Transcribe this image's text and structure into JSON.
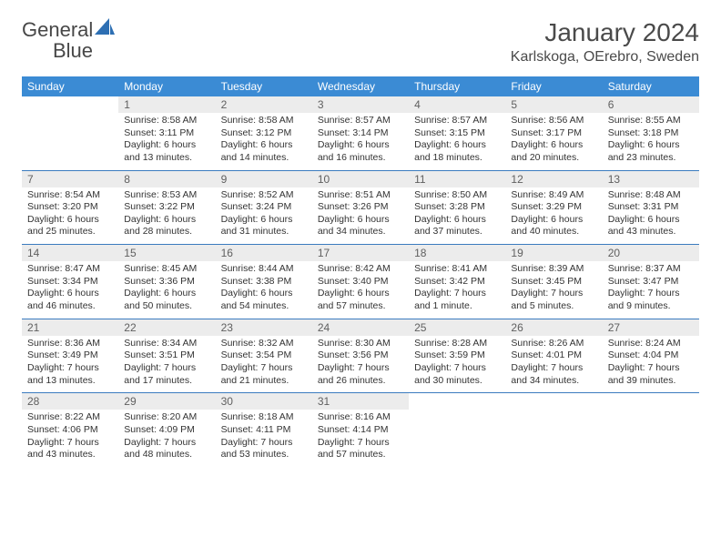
{
  "logo": {
    "word1": "General",
    "word2": "Blue",
    "shape_color": "#2d6fb3"
  },
  "title": "January 2024",
  "location": "Karlskoga, OErebro, Sweden",
  "header_bg": "#3b8bd4",
  "daynum_bg": "#ececec",
  "rule_color": "#3b7bbf",
  "weekdays": [
    "Sunday",
    "Monday",
    "Tuesday",
    "Wednesday",
    "Thursday",
    "Friday",
    "Saturday"
  ],
  "weeks": [
    [
      {
        "n": "",
        "sr": "",
        "ss": "",
        "dl1": "",
        "dl2": ""
      },
      {
        "n": "1",
        "sr": "Sunrise: 8:58 AM",
        "ss": "Sunset: 3:11 PM",
        "dl1": "Daylight: 6 hours",
        "dl2": "and 13 minutes."
      },
      {
        "n": "2",
        "sr": "Sunrise: 8:58 AM",
        "ss": "Sunset: 3:12 PM",
        "dl1": "Daylight: 6 hours",
        "dl2": "and 14 minutes."
      },
      {
        "n": "3",
        "sr": "Sunrise: 8:57 AM",
        "ss": "Sunset: 3:14 PM",
        "dl1": "Daylight: 6 hours",
        "dl2": "and 16 minutes."
      },
      {
        "n": "4",
        "sr": "Sunrise: 8:57 AM",
        "ss": "Sunset: 3:15 PM",
        "dl1": "Daylight: 6 hours",
        "dl2": "and 18 minutes."
      },
      {
        "n": "5",
        "sr": "Sunrise: 8:56 AM",
        "ss": "Sunset: 3:17 PM",
        "dl1": "Daylight: 6 hours",
        "dl2": "and 20 minutes."
      },
      {
        "n": "6",
        "sr": "Sunrise: 8:55 AM",
        "ss": "Sunset: 3:18 PM",
        "dl1": "Daylight: 6 hours",
        "dl2": "and 23 minutes."
      }
    ],
    [
      {
        "n": "7",
        "sr": "Sunrise: 8:54 AM",
        "ss": "Sunset: 3:20 PM",
        "dl1": "Daylight: 6 hours",
        "dl2": "and 25 minutes."
      },
      {
        "n": "8",
        "sr": "Sunrise: 8:53 AM",
        "ss": "Sunset: 3:22 PM",
        "dl1": "Daylight: 6 hours",
        "dl2": "and 28 minutes."
      },
      {
        "n": "9",
        "sr": "Sunrise: 8:52 AM",
        "ss": "Sunset: 3:24 PM",
        "dl1": "Daylight: 6 hours",
        "dl2": "and 31 minutes."
      },
      {
        "n": "10",
        "sr": "Sunrise: 8:51 AM",
        "ss": "Sunset: 3:26 PM",
        "dl1": "Daylight: 6 hours",
        "dl2": "and 34 minutes."
      },
      {
        "n": "11",
        "sr": "Sunrise: 8:50 AM",
        "ss": "Sunset: 3:28 PM",
        "dl1": "Daylight: 6 hours",
        "dl2": "and 37 minutes."
      },
      {
        "n": "12",
        "sr": "Sunrise: 8:49 AM",
        "ss": "Sunset: 3:29 PM",
        "dl1": "Daylight: 6 hours",
        "dl2": "and 40 minutes."
      },
      {
        "n": "13",
        "sr": "Sunrise: 8:48 AM",
        "ss": "Sunset: 3:31 PM",
        "dl1": "Daylight: 6 hours",
        "dl2": "and 43 minutes."
      }
    ],
    [
      {
        "n": "14",
        "sr": "Sunrise: 8:47 AM",
        "ss": "Sunset: 3:34 PM",
        "dl1": "Daylight: 6 hours",
        "dl2": "and 46 minutes."
      },
      {
        "n": "15",
        "sr": "Sunrise: 8:45 AM",
        "ss": "Sunset: 3:36 PM",
        "dl1": "Daylight: 6 hours",
        "dl2": "and 50 minutes."
      },
      {
        "n": "16",
        "sr": "Sunrise: 8:44 AM",
        "ss": "Sunset: 3:38 PM",
        "dl1": "Daylight: 6 hours",
        "dl2": "and 54 minutes."
      },
      {
        "n": "17",
        "sr": "Sunrise: 8:42 AM",
        "ss": "Sunset: 3:40 PM",
        "dl1": "Daylight: 6 hours",
        "dl2": "and 57 minutes."
      },
      {
        "n": "18",
        "sr": "Sunrise: 8:41 AM",
        "ss": "Sunset: 3:42 PM",
        "dl1": "Daylight: 7 hours",
        "dl2": "and 1 minute."
      },
      {
        "n": "19",
        "sr": "Sunrise: 8:39 AM",
        "ss": "Sunset: 3:45 PM",
        "dl1": "Daylight: 7 hours",
        "dl2": "and 5 minutes."
      },
      {
        "n": "20",
        "sr": "Sunrise: 8:37 AM",
        "ss": "Sunset: 3:47 PM",
        "dl1": "Daylight: 7 hours",
        "dl2": "and 9 minutes."
      }
    ],
    [
      {
        "n": "21",
        "sr": "Sunrise: 8:36 AM",
        "ss": "Sunset: 3:49 PM",
        "dl1": "Daylight: 7 hours",
        "dl2": "and 13 minutes."
      },
      {
        "n": "22",
        "sr": "Sunrise: 8:34 AM",
        "ss": "Sunset: 3:51 PM",
        "dl1": "Daylight: 7 hours",
        "dl2": "and 17 minutes."
      },
      {
        "n": "23",
        "sr": "Sunrise: 8:32 AM",
        "ss": "Sunset: 3:54 PM",
        "dl1": "Daylight: 7 hours",
        "dl2": "and 21 minutes."
      },
      {
        "n": "24",
        "sr": "Sunrise: 8:30 AM",
        "ss": "Sunset: 3:56 PM",
        "dl1": "Daylight: 7 hours",
        "dl2": "and 26 minutes."
      },
      {
        "n": "25",
        "sr": "Sunrise: 8:28 AM",
        "ss": "Sunset: 3:59 PM",
        "dl1": "Daylight: 7 hours",
        "dl2": "and 30 minutes."
      },
      {
        "n": "26",
        "sr": "Sunrise: 8:26 AM",
        "ss": "Sunset: 4:01 PM",
        "dl1": "Daylight: 7 hours",
        "dl2": "and 34 minutes."
      },
      {
        "n": "27",
        "sr": "Sunrise: 8:24 AM",
        "ss": "Sunset: 4:04 PM",
        "dl1": "Daylight: 7 hours",
        "dl2": "and 39 minutes."
      }
    ],
    [
      {
        "n": "28",
        "sr": "Sunrise: 8:22 AM",
        "ss": "Sunset: 4:06 PM",
        "dl1": "Daylight: 7 hours",
        "dl2": "and 43 minutes."
      },
      {
        "n": "29",
        "sr": "Sunrise: 8:20 AM",
        "ss": "Sunset: 4:09 PM",
        "dl1": "Daylight: 7 hours",
        "dl2": "and 48 minutes."
      },
      {
        "n": "30",
        "sr": "Sunrise: 8:18 AM",
        "ss": "Sunset: 4:11 PM",
        "dl1": "Daylight: 7 hours",
        "dl2": "and 53 minutes."
      },
      {
        "n": "31",
        "sr": "Sunrise: 8:16 AM",
        "ss": "Sunset: 4:14 PM",
        "dl1": "Daylight: 7 hours",
        "dl2": "and 57 minutes."
      },
      {
        "n": "",
        "sr": "",
        "ss": "",
        "dl1": "",
        "dl2": ""
      },
      {
        "n": "",
        "sr": "",
        "ss": "",
        "dl1": "",
        "dl2": ""
      },
      {
        "n": "",
        "sr": "",
        "ss": "",
        "dl1": "",
        "dl2": ""
      }
    ]
  ]
}
